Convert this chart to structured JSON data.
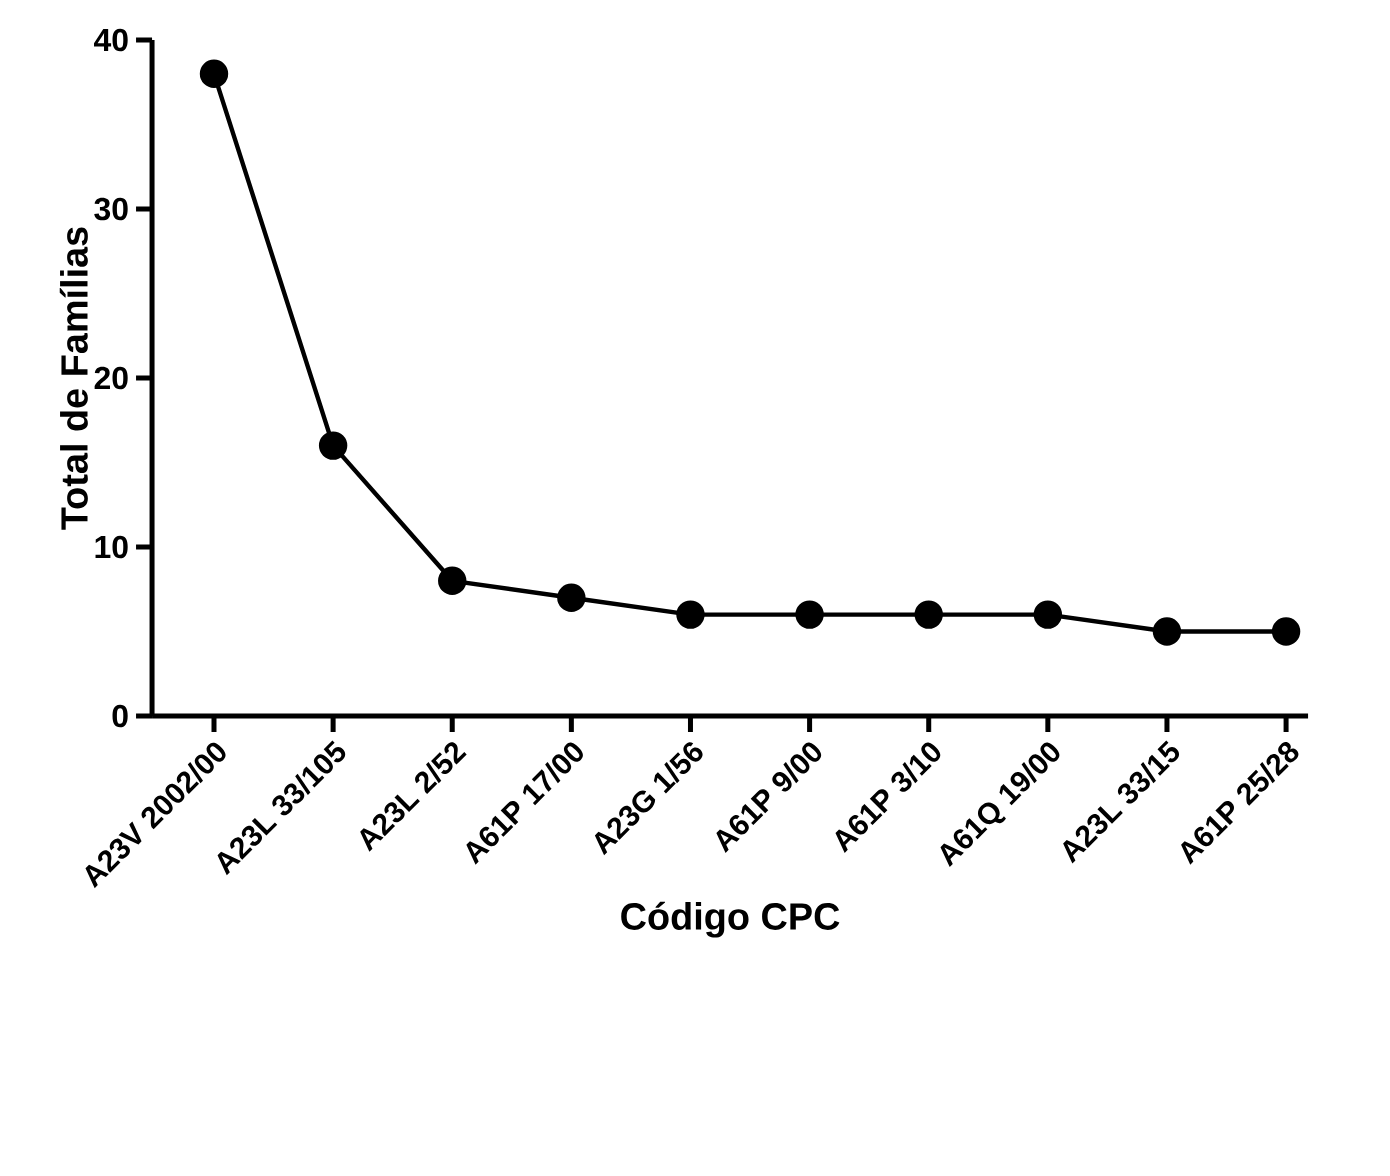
{
  "chart_data": {
    "type": "line",
    "xlabel": "Código CPC",
    "ylabel": "Total de Famílias",
    "categories": [
      "A23V 2002/00",
      "A23L 33/105",
      "A23L 2/52",
      "A61P 17/00",
      "A23G 1/56",
      "A61P 9/00",
      "A61P 3/10",
      "A61Q 19/00",
      "A23L 33/15",
      "A61P 25/28"
    ],
    "values": [
      38,
      16,
      8,
      7,
      6,
      6,
      6,
      6,
      5,
      5
    ],
    "color": "#000000",
    "marker": "circle",
    "line_style": "solid",
    "ylim": [
      0,
      40
    ],
    "yticks": [
      0,
      10,
      20,
      30,
      40
    ],
    "grid": false
  }
}
